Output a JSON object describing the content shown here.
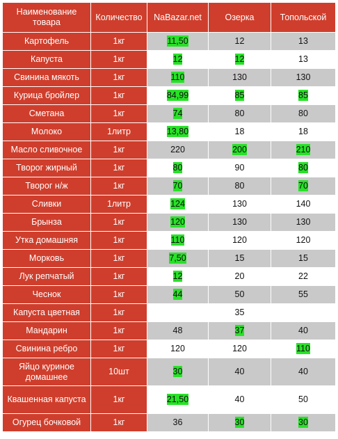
{
  "headers": {
    "name": "Наименование товара",
    "qty": "Количество",
    "nabazar": "NaBazar.net",
    "ozerka": "Озерка",
    "topolskoy": "Топольской"
  },
  "colors": {
    "header_bg": "#cf3e2c",
    "stripe_gray": "#c9c9c9",
    "stripe_white": "#ffffff",
    "highlight": "#27e227"
  },
  "rows": [
    {
      "name": "Картофель",
      "qty": "1кг",
      "nb": "11,50",
      "oz": "12",
      "tp": "13",
      "hl": [
        true,
        false,
        false
      ]
    },
    {
      "name": "Капуста",
      "qty": "1кг",
      "nb": "12",
      "oz": "12",
      "tp": "13",
      "hl": [
        true,
        true,
        false
      ]
    },
    {
      "name": "Свинина мякоть",
      "qty": "1кг",
      "nb": "110",
      "oz": "130",
      "tp": "130",
      "hl": [
        true,
        false,
        false
      ]
    },
    {
      "name": "Курица бройлер",
      "qty": "1кг",
      "nb": "84,99",
      "oz": "85",
      "tp": "85",
      "hl": [
        true,
        true,
        true
      ]
    },
    {
      "name": "Сметана",
      "qty": "1кг",
      "nb": "74",
      "oz": "80",
      "tp": "80",
      "hl": [
        true,
        false,
        false
      ]
    },
    {
      "name": "Молоко",
      "qty": "1литр",
      "nb": "13,80",
      "oz": "18",
      "tp": "18",
      "hl": [
        true,
        false,
        false
      ]
    },
    {
      "name": "Масло сливочное",
      "qty": "1кг",
      "nb": "220",
      "oz": "200",
      "tp": "210",
      "hl": [
        false,
        true,
        true
      ]
    },
    {
      "name": "Творог жирный",
      "qty": "1кг",
      "nb": "80",
      "oz": "90",
      "tp": "80",
      "hl": [
        true,
        false,
        true
      ]
    },
    {
      "name": "Творог н/ж",
      "qty": "1кг",
      "nb": "70",
      "oz": "80",
      "tp": "70",
      "hl": [
        true,
        false,
        true
      ]
    },
    {
      "name": "Сливки",
      "qty": "1литр",
      "nb": "124",
      "oz": "130",
      "tp": "140",
      "hl": [
        true,
        false,
        false
      ]
    },
    {
      "name": "Брынза",
      "qty": "1кг",
      "nb": "120",
      "oz": "130",
      "tp": "130",
      "hl": [
        true,
        false,
        false
      ]
    },
    {
      "name": "Утка домашняя",
      "qty": "1кг",
      "nb": "110",
      "oz": "120",
      "tp": "120",
      "hl": [
        true,
        false,
        false
      ]
    },
    {
      "name": "Морковь",
      "qty": "1кг",
      "nb": "7,50",
      "oz": "15",
      "tp": "15",
      "hl": [
        true,
        false,
        false
      ]
    },
    {
      "name": "Лук репчатый",
      "qty": "1кг",
      "nb": "12",
      "oz": "20",
      "tp": "22",
      "hl": [
        true,
        false,
        false
      ]
    },
    {
      "name": "Чеснок",
      "qty": "1кг",
      "nb": "44",
      "oz": "50",
      "tp": "55",
      "hl": [
        true,
        false,
        false
      ]
    },
    {
      "name": "Капуста цветная",
      "qty": "1кг",
      "nb": "",
      "oz": "35",
      "tp": "",
      "hl": [
        false,
        false,
        false
      ]
    },
    {
      "name": "Мандарин",
      "qty": "1кг",
      "nb": "48",
      "oz": "37",
      "tp": "40",
      "hl": [
        false,
        true,
        false
      ]
    },
    {
      "name": "Свинина ребро",
      "qty": "1кг",
      "nb": "120",
      "oz": "120",
      "tp": "110",
      "hl": [
        false,
        false,
        true
      ]
    },
    {
      "name": "Яйцо куриное домашнее",
      "qty": "10шт",
      "nb": "30",
      "oz": "40",
      "tp": "40",
      "hl": [
        true,
        false,
        false
      ]
    },
    {
      "name": "Квашенная капуста",
      "qty": "1кг",
      "nb": "21,50",
      "oz": "40",
      "tp": "50",
      "hl": [
        true,
        false,
        false
      ]
    },
    {
      "name": "Огурец бочковой",
      "qty": "1кг",
      "nb": "36",
      "oz": "30",
      "tp": "30",
      "hl": [
        false,
        true,
        true
      ]
    }
  ]
}
